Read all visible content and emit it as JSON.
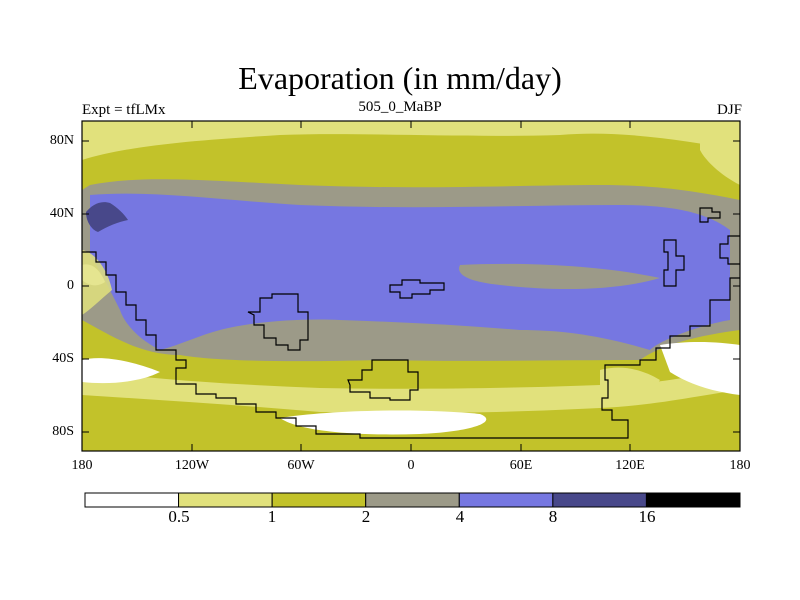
{
  "title": "Evaporation (in mm/day)",
  "left_label": "Expt = tfLMx",
  "center_label": "505_0_MaBP",
  "right_label": "DJF",
  "lat_ticks": [
    "80N",
    "40N",
    "0",
    "40S",
    "80S"
  ],
  "lon_ticks": [
    "180",
    "120W",
    "60W",
    "0",
    "60E",
    "120E",
    "180"
  ],
  "colorbar": {
    "colors": [
      "#ffffff",
      "#e1e17c",
      "#c2c22a",
      "#9c9a88",
      "#7677e1",
      "#48488a",
      "#000000"
    ],
    "labels": [
      "0.5",
      "1",
      "2",
      "4",
      "8",
      "16"
    ]
  }
}
